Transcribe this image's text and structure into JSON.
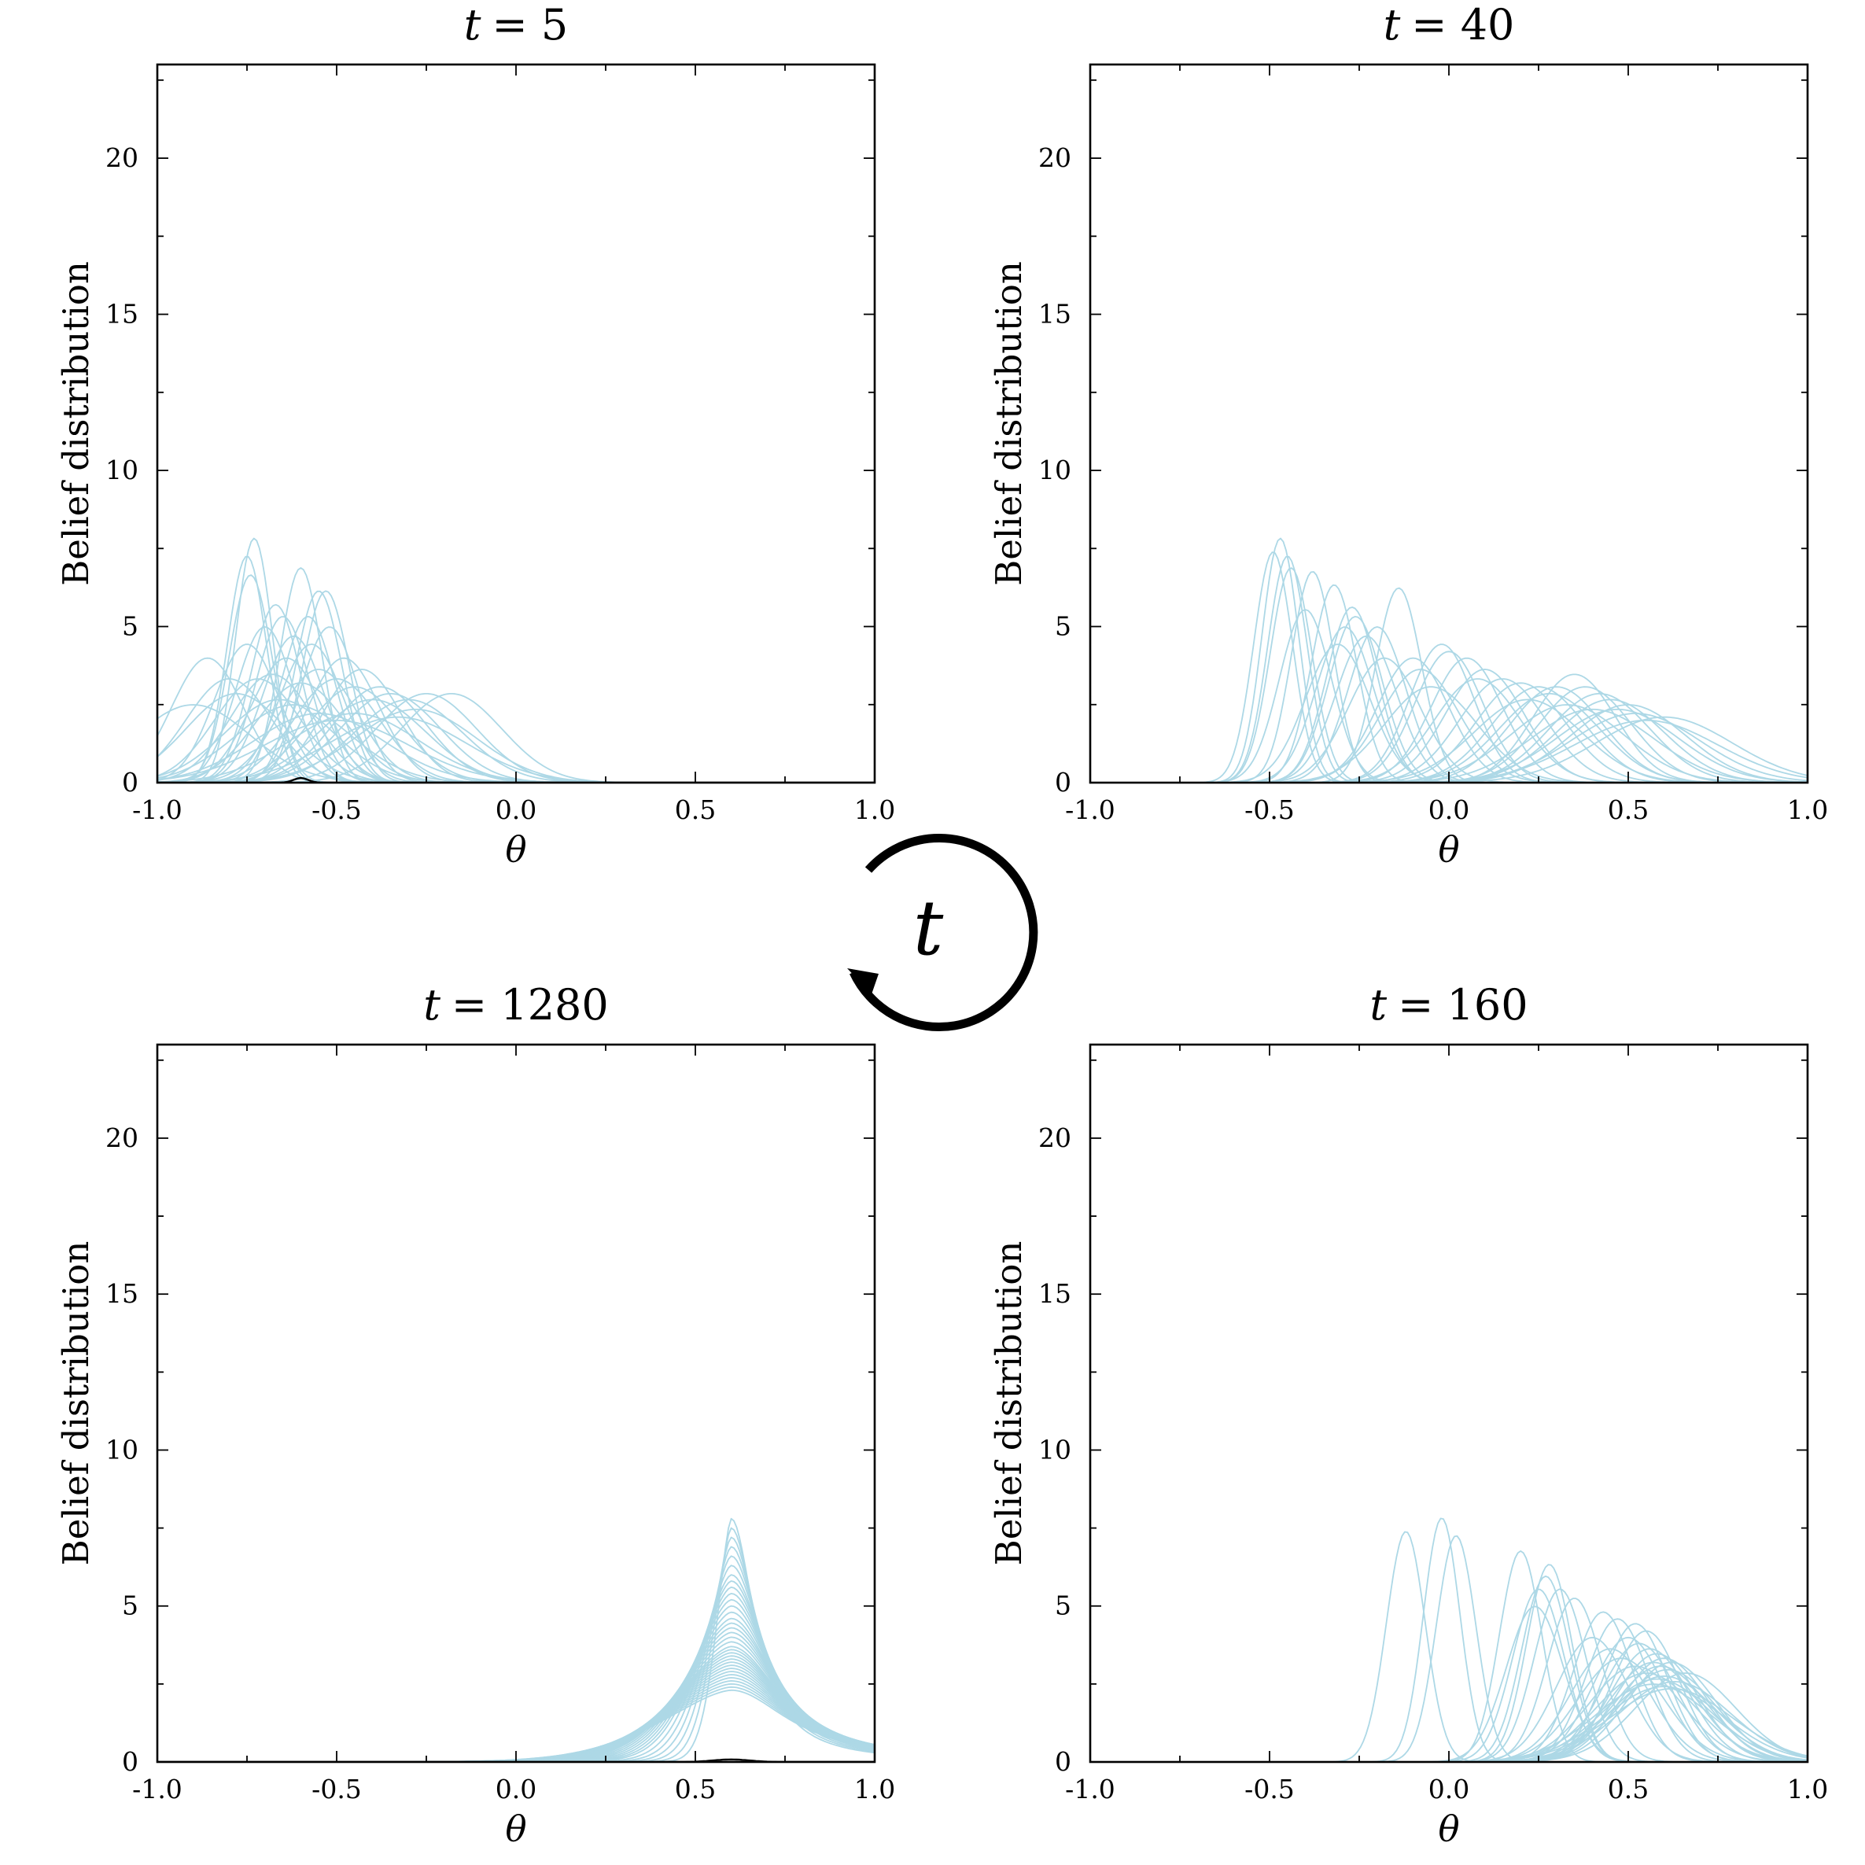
{
  "colors": {
    "curve": "#add8e6",
    "axis": "#000000",
    "baseline": "#000000"
  },
  "cycle_indicator": {
    "label": "t",
    "direction": "counterclockwise"
  },
  "chart_data": [
    {
      "type": "line",
      "title_var": "t",
      "title_eq": "= 5",
      "xlabel": "θ",
      "ylabel": "Belief distribution",
      "xlim": [
        -1.0,
        1.0
      ],
      "ylim": [
        0,
        23
      ],
      "xticks": [
        -1.0,
        -0.5,
        0.0,
        0.5,
        1.0
      ],
      "xtick_labels": [
        "-1.0",
        "-0.5",
        "0.0",
        "0.5",
        "1.0"
      ],
      "yticks": [
        0,
        5,
        10,
        15,
        20
      ],
      "ytick_labels": [
        "0",
        "5",
        "10",
        "15",
        "20"
      ],
      "grid": false,
      "series": [
        {
          "mu": -0.73,
          "sigma": 0.051
        },
        {
          "mu": -0.75,
          "sigma": 0.055
        },
        {
          "mu": -0.74,
          "sigma": 0.06
        },
        {
          "mu": -0.67,
          "sigma": 0.07
        },
        {
          "mu": -0.6,
          "sigma": 0.058
        },
        {
          "mu": -0.55,
          "sigma": 0.065
        },
        {
          "mu": -0.53,
          "sigma": 0.065
        },
        {
          "mu": -0.58,
          "sigma": 0.075
        },
        {
          "mu": -0.52,
          "sigma": 0.08
        },
        {
          "mu": -0.65,
          "sigma": 0.075
        },
        {
          "mu": -0.7,
          "sigma": 0.08
        },
        {
          "mu": -0.62,
          "sigma": 0.085
        },
        {
          "mu": -0.57,
          "sigma": 0.09
        },
        {
          "mu": -0.75,
          "sigma": 0.09
        },
        {
          "mu": -0.64,
          "sigma": 0.1
        },
        {
          "mu": -0.48,
          "sigma": 0.1
        },
        {
          "mu": -0.43,
          "sigma": 0.11
        },
        {
          "mu": -0.55,
          "sigma": 0.11
        },
        {
          "mu": -0.68,
          "sigma": 0.115
        },
        {
          "mu": -0.5,
          "sigma": 0.12
        },
        {
          "mu": -0.6,
          "sigma": 0.125
        },
        {
          "mu": -0.86,
          "sigma": 0.1
        },
        {
          "mu": -0.8,
          "sigma": 0.12
        },
        {
          "mu": -0.78,
          "sigma": 0.14
        },
        {
          "mu": -0.9,
          "sigma": 0.16
        },
        {
          "mu": -0.45,
          "sigma": 0.13
        },
        {
          "mu": -0.38,
          "sigma": 0.13
        },
        {
          "mu": -0.35,
          "sigma": 0.14
        },
        {
          "mu": -0.4,
          "sigma": 0.15
        },
        {
          "mu": -0.3,
          "sigma": 0.15
        },
        {
          "mu": -0.25,
          "sigma": 0.14
        },
        {
          "mu": -0.18,
          "sigma": 0.14
        },
        {
          "mu": -0.28,
          "sigma": 0.17
        },
        {
          "mu": -0.45,
          "sigma": 0.18
        },
        {
          "mu": -0.55,
          "sigma": 0.18
        },
        {
          "mu": -0.66,
          "sigma": 0.15
        },
        {
          "mu": -0.72,
          "sigma": 0.12
        },
        {
          "mu": -0.5,
          "sigma": 0.2
        },
        {
          "mu": -0.62,
          "sigma": 0.16
        },
        {
          "mu": -0.33,
          "sigma": 0.19
        }
      ],
      "baseline_bump": {
        "mu": -0.6,
        "sigma": 0.02,
        "peak": 0.15
      }
    },
    {
      "type": "line",
      "title_var": "t",
      "title_eq": "= 40",
      "xlabel": "θ",
      "ylabel": "Belief distribution",
      "xlim": [
        -1.0,
        1.0
      ],
      "ylim": [
        0,
        23
      ],
      "xticks": [
        -1.0,
        -0.5,
        0.0,
        0.5,
        1.0
      ],
      "xtick_labels": [
        "-1.0",
        "-0.5",
        "0.0",
        "0.5",
        "1.0"
      ],
      "yticks": [
        0,
        5,
        10,
        15,
        20
      ],
      "ytick_labels": [
        "0",
        "5",
        "10",
        "15",
        "20"
      ],
      "grid": false,
      "series": [
        {
          "mu": -0.47,
          "sigma": 0.051
        },
        {
          "mu": -0.49,
          "sigma": 0.054
        },
        {
          "mu": -0.45,
          "sigma": 0.055
        },
        {
          "mu": -0.44,
          "sigma": 0.058
        },
        {
          "mu": -0.38,
          "sigma": 0.059
        },
        {
          "mu": -0.32,
          "sigma": 0.063
        },
        {
          "mu": -0.4,
          "sigma": 0.072
        },
        {
          "mu": -0.27,
          "sigma": 0.071
        },
        {
          "mu": -0.14,
          "sigma": 0.064
        },
        {
          "mu": -0.26,
          "sigma": 0.075
        },
        {
          "mu": -0.2,
          "sigma": 0.08
        },
        {
          "mu": -0.29,
          "sigma": 0.08
        },
        {
          "mu": -0.23,
          "sigma": 0.085
        },
        {
          "mu": -0.31,
          "sigma": 0.09
        },
        {
          "mu": -0.18,
          "sigma": 0.1
        },
        {
          "mu": -0.1,
          "sigma": 0.1
        },
        {
          "mu": -0.02,
          "sigma": 0.09
        },
        {
          "mu": 0.0,
          "sigma": 0.095
        },
        {
          "mu": -0.08,
          "sigma": 0.11
        },
        {
          "mu": 0.05,
          "sigma": 0.1
        },
        {
          "mu": 0.1,
          "sigma": 0.11
        },
        {
          "mu": 0.08,
          "sigma": 0.12
        },
        {
          "mu": 0.15,
          "sigma": 0.12
        },
        {
          "mu": 0.2,
          "sigma": 0.125
        },
        {
          "mu": 0.25,
          "sigma": 0.13
        },
        {
          "mu": 0.3,
          "sigma": 0.13
        },
        {
          "mu": 0.28,
          "sigma": 0.14
        },
        {
          "mu": 0.35,
          "sigma": 0.115
        },
        {
          "mu": 0.38,
          "sigma": 0.13
        },
        {
          "mu": 0.42,
          "sigma": 0.14
        },
        {
          "mu": 0.45,
          "sigma": 0.15
        },
        {
          "mu": 0.5,
          "sigma": 0.16
        },
        {
          "mu": 0.47,
          "sigma": 0.17
        },
        {
          "mu": 0.52,
          "sigma": 0.18
        },
        {
          "mu": 0.4,
          "sigma": 0.17
        },
        {
          "mu": 0.55,
          "sigma": 0.2
        },
        {
          "mu": 0.33,
          "sigma": 0.16
        },
        {
          "mu": 0.6,
          "sigma": 0.19
        },
        {
          "mu": 0.22,
          "sigma": 0.15
        },
        {
          "mu": -0.05,
          "sigma": 0.13
        }
      ]
    },
    {
      "type": "line",
      "title_var": "t",
      "title_eq": "= 1280",
      "xlabel": "θ",
      "ylabel": "Belief distribution",
      "xlim": [
        -1.0,
        1.0
      ],
      "ylim": [
        0,
        23
      ],
      "xticks": [
        -1.0,
        -0.5,
        0.0,
        0.5,
        1.0
      ],
      "xtick_labels": [
        "-1.0",
        "-0.5",
        "0.0",
        "0.5",
        "1.0"
      ],
      "yticks": [
        0,
        5,
        10,
        15,
        20
      ],
      "ytick_labels": [
        "0",
        "5",
        "10",
        "15",
        "20"
      ],
      "grid": false,
      "cusp_series": {
        "center": 0.6,
        "peaks": [
          7.8,
          7.5,
          7.2,
          6.9,
          6.6,
          6.3,
          6.0,
          5.8,
          5.6,
          5.4,
          5.2,
          5.0,
          4.8,
          4.6,
          4.45,
          4.3,
          4.15,
          4.0,
          3.85,
          3.7,
          3.6,
          3.5,
          3.4,
          3.3,
          3.2,
          3.1,
          3.0,
          2.9,
          2.8,
          2.7,
          2.6,
          2.5,
          2.4,
          2.3
        ]
      },
      "baseline_bump": {
        "mu": 0.6,
        "sigma": 0.05,
        "peak": 0.08
      }
    },
    {
      "type": "line",
      "title_var": "t",
      "title_eq": "= 160",
      "xlabel": "θ",
      "ylabel": "Belief distribution",
      "xlim": [
        -1.0,
        1.0
      ],
      "ylim": [
        0,
        23
      ],
      "xticks": [
        -1.0,
        -0.5,
        0.0,
        0.5,
        1.0
      ],
      "xtick_labels": [
        "-1.0",
        "-0.5",
        "0.0",
        "0.5",
        "1.0"
      ],
      "yticks": [
        0,
        5,
        10,
        15,
        20
      ],
      "ytick_labels": [
        "0",
        "5",
        "10",
        "15",
        "20"
      ],
      "grid": false,
      "series": [
        {
          "mu": -0.12,
          "sigma": 0.054
        },
        {
          "mu": -0.02,
          "sigma": 0.051
        },
        {
          "mu": 0.02,
          "sigma": 0.055
        },
        {
          "mu": 0.2,
          "sigma": 0.059
        },
        {
          "mu": 0.28,
          "sigma": 0.063
        },
        {
          "mu": 0.27,
          "sigma": 0.067
        },
        {
          "mu": 0.31,
          "sigma": 0.072
        },
        {
          "mu": 0.25,
          "sigma": 0.072
        },
        {
          "mu": 0.35,
          "sigma": 0.076
        },
        {
          "mu": 0.24,
          "sigma": 0.08
        },
        {
          "mu": 0.43,
          "sigma": 0.083
        },
        {
          "mu": 0.47,
          "sigma": 0.087
        },
        {
          "mu": 0.52,
          "sigma": 0.09
        },
        {
          "mu": 0.55,
          "sigma": 0.095
        },
        {
          "mu": 0.4,
          "sigma": 0.1
        },
        {
          "mu": 0.5,
          "sigma": 0.1
        },
        {
          "mu": 0.45,
          "sigma": 0.11
        },
        {
          "mu": 0.53,
          "sigma": 0.105
        },
        {
          "mu": 0.56,
          "sigma": 0.11
        },
        {
          "mu": 0.58,
          "sigma": 0.115
        },
        {
          "mu": 0.6,
          "sigma": 0.12
        },
        {
          "mu": 0.57,
          "sigma": 0.125
        },
        {
          "mu": 0.62,
          "sigma": 0.125
        },
        {
          "mu": 0.59,
          "sigma": 0.13
        },
        {
          "mu": 0.61,
          "sigma": 0.135
        },
        {
          "mu": 0.55,
          "sigma": 0.14
        },
        {
          "mu": 0.6,
          "sigma": 0.145
        },
        {
          "mu": 0.58,
          "sigma": 0.15
        },
        {
          "mu": 0.63,
          "sigma": 0.155
        },
        {
          "mu": 0.57,
          "sigma": 0.16
        },
        {
          "mu": 0.6,
          "sigma": 0.165
        },
        {
          "mu": 0.62,
          "sigma": 0.17
        },
        {
          "mu": 0.66,
          "sigma": 0.14
        },
        {
          "mu": 0.52,
          "sigma": 0.13
        },
        {
          "mu": 0.48,
          "sigma": 0.12
        }
      ]
    }
  ]
}
